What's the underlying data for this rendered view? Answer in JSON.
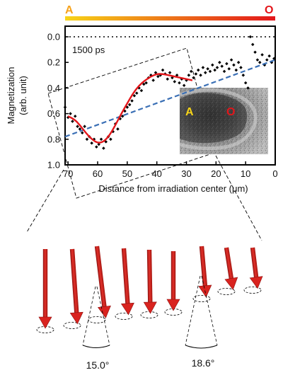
{
  "figure": {
    "end_left_label": "A",
    "end_right_label": "O",
    "end_left_color": "#f7a21a",
    "end_right_color": "#e3161b",
    "time_label": "1500 ps",
    "time_label_color": "#2a2a7a"
  },
  "chart_data": {
    "type": "scatter",
    "xlabel": "Distance from irradiation center (μm)",
    "ylabel": "Magnetization (arb. unit)",
    "xlim": [
      71,
      0
    ],
    "ylim": [
      0.0,
      1.0
    ],
    "x_ticks": [
      70,
      60,
      50,
      40,
      30,
      20,
      10,
      0
    ],
    "y_ticks": [
      "0.0",
      "0.2",
      "0.4",
      "0.6",
      "0.8",
      "1.0"
    ],
    "y_tick_values": [
      0.0,
      0.2,
      0.4,
      0.6,
      0.8,
      1.0
    ],
    "reference_line": {
      "y": 0.0,
      "style": "dotted"
    },
    "series": [
      {
        "kind": "points",
        "x": [
          71.0,
          70.0,
          69.2,
          68.5,
          67.6,
          66.8,
          66.0,
          65.2,
          64.4,
          63.6,
          62.8,
          62.0,
          61.2,
          60.4,
          59.6,
          58.8,
          58.0,
          57.2,
          56.4,
          55.6,
          54.8,
          54.0,
          53.2,
          52.4,
          51.6,
          50.8,
          50.0,
          49.2,
          48.4,
          47.6,
          46.8,
          46.0,
          45.2,
          44.4,
          43.6,
          42.8,
          42.0,
          41.2,
          40.4,
          39.6,
          38.8,
          38.0,
          37.2,
          36.4,
          35.6,
          34.8,
          34.0,
          33.2,
          32.4,
          31.6,
          30.8,
          30.0,
          29.2,
          28.4,
          27.6,
          26.8,
          26.0,
          25.2,
          24.4,
          23.6,
          22.8,
          22.0,
          21.2,
          20.4,
          19.6,
          18.8,
          18.0,
          17.2,
          16.4,
          15.6,
          14.8,
          14.0,
          13.2,
          12.4,
          11.6,
          10.8,
          10.0,
          9.2,
          8.4,
          7.6,
          6.8,
          6.0,
          5.2,
          4.4,
          3.6,
          2.8,
          2.0,
          1.2,
          0.4
        ],
        "y": [
          0.55,
          0.63,
          0.6,
          0.66,
          0.62,
          0.7,
          0.72,
          0.75,
          0.7,
          0.8,
          0.78,
          0.83,
          0.8,
          0.86,
          0.84,
          0.8,
          0.87,
          0.82,
          0.78,
          0.8,
          0.74,
          0.68,
          0.72,
          0.64,
          0.62,
          0.58,
          0.55,
          0.53,
          0.5,
          0.46,
          0.44,
          0.4,
          0.42,
          0.37,
          0.36,
          0.32,
          0.3,
          0.34,
          0.28,
          0.31,
          0.3,
          0.26,
          0.29,
          0.33,
          0.28,
          0.32,
          0.35,
          0.3,
          0.36,
          0.33,
          0.38,
          0.34,
          0.3,
          0.27,
          0.32,
          0.29,
          0.26,
          0.3,
          0.24,
          0.28,
          0.25,
          0.27,
          0.22,
          0.26,
          0.24,
          0.2,
          0.23,
          0.27,
          0.21,
          0.25,
          0.18,
          0.22,
          0.26,
          0.2,
          0.24,
          0.3,
          0.36,
          0.4,
          0.0,
          0.06,
          0.12,
          0.18,
          0.2,
          0.14,
          0.22,
          0.18,
          0.15,
          0.2,
          0.17
        ],
        "color": "#000000"
      },
      {
        "kind": "fit_line",
        "x": [
          70,
          68,
          66,
          64,
          62,
          60,
          58,
          56,
          54,
          52,
          50,
          48,
          46,
          44,
          42,
          40,
          38,
          36,
          34,
          32,
          30,
          28
        ],
        "y": [
          0.62,
          0.64,
          0.69,
          0.75,
          0.8,
          0.83,
          0.82,
          0.77,
          0.69,
          0.6,
          0.52,
          0.44,
          0.38,
          0.34,
          0.31,
          0.29,
          0.29,
          0.3,
          0.31,
          0.32,
          0.33,
          0.34
        ],
        "color": "#e3161b",
        "style": "solid"
      },
      {
        "kind": "trend_line",
        "x": [
          71,
          0
        ],
        "y": [
          0.78,
          0.18
        ],
        "color": "#3a6fb5",
        "style": "dashed"
      }
    ],
    "inset": {
      "label_left": "A",
      "label_right": "O",
      "label_left_color": "#f7d418",
      "label_right_color": "#e3161b"
    }
  },
  "arrows": {
    "color": "#d9231f",
    "tilts_deg": [
      0,
      4,
      7,
      4,
      1,
      0,
      5,
      9,
      7,
      3
    ],
    "angle_labels": [
      "15.0°",
      "18.6°"
    ]
  }
}
